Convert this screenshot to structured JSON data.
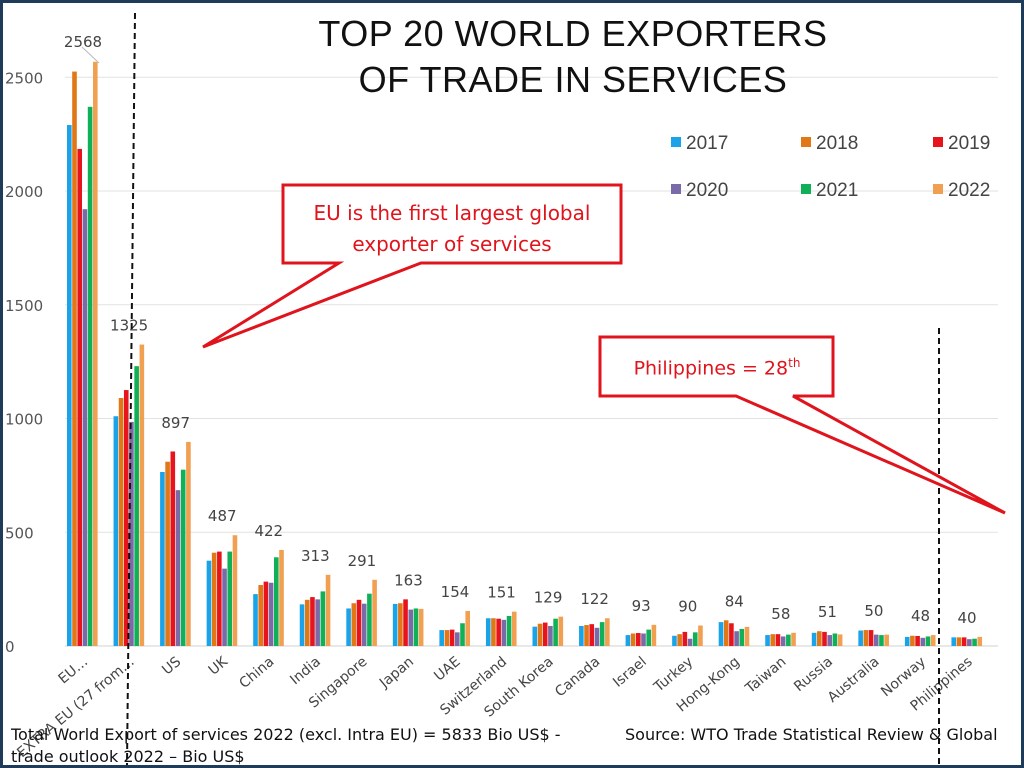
{
  "title_lines": [
    "TOP 20 WORLD EXPORTERS",
    "OF TRADE IN SERVICES"
  ],
  "callouts": {
    "eu_lines": [
      "EU is the first largest global",
      "exporter of services"
    ],
    "philippines_text": "Philippines = 28",
    "philippines_sup": "th"
  },
  "footer": {
    "left_lines": [
      "Total World Export of services 2022 (excl. Intra EU) = 5833 Bio US$ -",
      "trade outlook 2022 – Bio US$"
    ],
    "right": "Source: WTO Trade Statistical Review & Global"
  },
  "colors": {
    "2017": "#1aa3e8",
    "2018": "#e07818",
    "2019": "#e8141c",
    "2020": "#7b6aa8",
    "2021": "#10b058",
    "2022": "#f0a050",
    "callout": "#e0141c"
  },
  "chart_data": {
    "type": "bar",
    "title": "TOP 20 WORLD EXPORTERS OF TRADE IN SERVICES",
    "ylim": [
      0,
      2500
    ],
    "yticks": [
      0,
      500,
      1000,
      1500,
      2000,
      2500
    ],
    "grid": true,
    "legend_position": "top-right",
    "categories": [
      "EU…",
      "EXTRA EU (27 from…",
      "US",
      "UK",
      "China",
      "India",
      "Singapore",
      "Japan",
      "UAE",
      "Switzerland",
      "South Korea",
      "Canada",
      "Israel",
      "Turkey",
      "Hong-Kong",
      "Taiwan",
      "Russia",
      "Australia",
      "Norway",
      "Philippines"
    ],
    "series": [
      {
        "name": "2017",
        "values": [
          2290,
          1010,
          765,
          375,
          228,
          183,
          165,
          185,
          70,
          122,
          85,
          88,
          48,
          45,
          105,
          48,
          58,
          68,
          40,
          38
        ]
      },
      {
        "name": "2018",
        "values": [
          2525,
          1090,
          810,
          410,
          268,
          203,
          188,
          188,
          70,
          122,
          98,
          92,
          55,
          52,
          113,
          52,
          65,
          70,
          45,
          38
        ]
      },
      {
        "name": "2019",
        "values": [
          2185,
          1125,
          855,
          415,
          283,
          215,
          203,
          205,
          72,
          120,
          103,
          96,
          57,
          62,
          100,
          52,
          62,
          70,
          44,
          38
        ]
      },
      {
        "name": "2020",
        "values": [
          1920,
          985,
          685,
          340,
          278,
          205,
          186,
          160,
          60,
          115,
          88,
          80,
          55,
          32,
          65,
          42,
          48,
          50,
          36,
          30
        ]
      },
      {
        "name": "2021",
        "values": [
          2370,
          1230,
          775,
          415,
          390,
          240,
          230,
          165,
          100,
          132,
          120,
          105,
          72,
          60,
          75,
          50,
          55,
          48,
          42,
          32
        ]
      },
      {
        "name": "2022",
        "values": [
          2568,
          1325,
          897,
          487,
          422,
          313,
          291,
          163,
          154,
          151,
          129,
          122,
          93,
          90,
          84,
          58,
          51,
          50,
          48,
          40
        ]
      }
    ],
    "data_labels": {
      "series": "2022",
      "values": [
        2568,
        1325,
        897,
        487,
        422,
        313,
        291,
        163,
        154,
        151,
        129,
        122,
        93,
        90,
        84,
        58,
        51,
        50,
        48,
        40
      ]
    }
  }
}
